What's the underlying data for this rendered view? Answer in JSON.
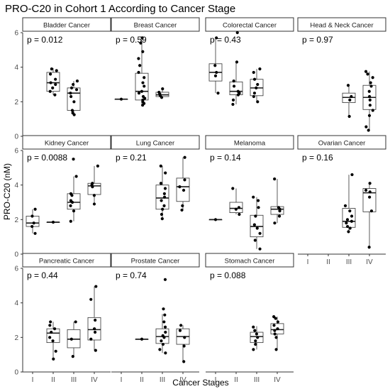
{
  "chart_data": {
    "type": "box",
    "title": "PRO-C20 in Cohort 1 According to Cancer Stage",
    "xlabel": "Cancer Stages",
    "ylabel": "PRO-C20 (nM)",
    "categories": [
      "I",
      "II",
      "III",
      "IV"
    ],
    "ylim": [
      0,
      6
    ],
    "yticks": [
      "0",
      "2",
      "4",
      "6"
    ],
    "layout": "facet-grid 4 columns x 3 rows, free x-axis only on bottom cells",
    "panels": [
      {
        "name": "Bladder Cancer",
        "p_label": "p = 0.012",
        "groups": [
          {
            "stage": "II",
            "q1": 2.6,
            "median": 3.1,
            "q3": 3.7,
            "low": 2.4,
            "high": 3.95,
            "points": [
              2.4,
              2.6,
              2.8,
              3.0,
              3.1,
              3.3,
              3.6,
              3.8,
              3.9
            ]
          },
          {
            "stage": "III",
            "q1": 1.5,
            "median": 2.5,
            "q3": 2.8,
            "low": 1.25,
            "high": 3.2,
            "points": [
              1.25,
              1.35,
              1.5,
              2.0,
              2.3,
              2.5,
              2.7,
              2.8,
              3.0,
              3.2
            ]
          }
        ]
      },
      {
        "name": "Breast Cancer",
        "p_label": "p = 0.59",
        "groups": [
          {
            "stage": "I",
            "q1": 2.15,
            "median": 2.15,
            "q3": 2.15,
            "low": 2.15,
            "high": 2.15,
            "points": [
              2.15
            ]
          },
          {
            "stage": "II",
            "q1": 2.1,
            "median": 2.6,
            "q3": 3.65,
            "low": 1.8,
            "high": 5.7,
            "points": [
              1.8,
              1.9,
              2.0,
              2.1,
              2.2,
              2.3,
              2.5,
              2.6,
              2.9,
              3.1,
              3.4,
              3.7,
              4.1,
              4.5,
              4.9,
              5.4,
              5.7
            ]
          },
          {
            "stage": "III",
            "q1": 2.3,
            "median": 2.4,
            "q3": 2.55,
            "low": 2.25,
            "high": 2.75,
            "points": [
              2.25,
              2.35,
              2.45,
              2.55,
              2.75
            ]
          }
        ]
      },
      {
        "name": "Colorectal Cancer",
        "p_label": "p = 0.43",
        "groups": [
          {
            "stage": "I",
            "q1": 3.2,
            "median": 3.7,
            "q3": 4.2,
            "low": 2.5,
            "high": 5.7,
            "points": [
              2.5,
              3.5,
              3.7,
              4.1,
              5.7
            ]
          },
          {
            "stage": "II",
            "q1": 2.4,
            "median": 2.6,
            "q3": 3.15,
            "low": 1.85,
            "high": 4.3,
            "points": [
              1.85,
              2.1,
              2.4,
              2.5,
              2.6,
              2.9,
              3.2,
              4.3,
              6.0
            ]
          },
          {
            "stage": "III",
            "q1": 2.35,
            "median": 2.8,
            "q3": 3.3,
            "low": 2.0,
            "high": 3.9,
            "points": [
              2.0,
              2.3,
              2.5,
              2.8,
              3.0,
              3.3,
              3.7,
              3.9
            ]
          }
        ]
      },
      {
        "name": "Head & Neck Cancer",
        "p_label": "p = 0.97",
        "groups": [
          {
            "stage": "III",
            "q1": 1.95,
            "median": 2.25,
            "q3": 2.5,
            "low": 1.15,
            "high": 2.95,
            "points": [
              1.15,
              2.1,
              2.3,
              2.95
            ]
          },
          {
            "stage": "IV",
            "q1": 1.55,
            "median": 2.25,
            "q3": 2.95,
            "low": 0.35,
            "high": 3.75,
            "points": [
              0.35,
              0.55,
              1.2,
              1.5,
              1.8,
              2.1,
              2.3,
              2.6,
              2.9,
              3.1,
              3.4,
              3.6,
              3.75
            ]
          }
        ]
      },
      {
        "name": "Kidney Cancer",
        "p_label": "p = 0.0088",
        "groups": [
          {
            "stage": "I",
            "q1": 1.6,
            "median": 1.8,
            "q3": 2.2,
            "low": 1.2,
            "high": 2.6,
            "points": [
              1.2,
              1.6,
              1.8,
              2.2,
              2.6
            ]
          },
          {
            "stage": "II",
            "q1": 1.85,
            "median": 1.85,
            "q3": 1.85,
            "low": 1.85,
            "high": 1.85,
            "points": [
              1.85
            ]
          },
          {
            "stage": "III",
            "q1": 2.6,
            "median": 3.0,
            "q3": 3.5,
            "low": 1.9,
            "high": 4.5,
            "points": [
              1.9,
              2.5,
              2.8,
              3.0,
              3.1,
              3.4,
              3.5,
              4.5,
              5.5
            ]
          },
          {
            "stage": "IV",
            "q1": 3.45,
            "median": 3.95,
            "q3": 4.1,
            "low": 2.9,
            "high": 5.1,
            "points": [
              2.9,
              3.4,
              3.9,
              4.0,
              4.1,
              5.1
            ]
          }
        ]
      },
      {
        "name": "Lung Cancer",
        "p_label": "p = 0.21",
        "groups": [
          {
            "stage": "III",
            "q1": 2.6,
            "median": 3.25,
            "q3": 4.0,
            "low": 2.05,
            "high": 5.1,
            "points": [
              2.05,
              2.3,
              2.6,
              2.8,
              3.1,
              3.3,
              3.5,
              3.8,
              4.1,
              4.7,
              5.1
            ]
          },
          {
            "stage": "IV",
            "q1": 3.05,
            "median": 3.9,
            "q3": 4.4,
            "low": 2.55,
            "high": 5.6,
            "points": [
              2.55,
              2.8,
              3.7,
              3.9,
              4.3,
              5.6
            ]
          }
        ]
      },
      {
        "name": "Melanoma",
        "p_label": "p = 0.14",
        "groups": [
          {
            "stage": "I",
            "q1": 2.0,
            "median": 2.0,
            "q3": 2.0,
            "low": 2.0,
            "high": 2.0,
            "points": [
              2.0
            ]
          },
          {
            "stage": "II",
            "q1": 2.4,
            "median": 2.65,
            "q3": 3.0,
            "low": 2.3,
            "high": 3.8,
            "points": [
              2.3,
              2.6,
              2.7,
              3.8
            ]
          },
          {
            "stage": "III",
            "q1": 1.0,
            "median": 1.6,
            "q3": 2.25,
            "low": 0.3,
            "high": 3.3,
            "points": [
              0.3,
              0.8,
              1.2,
              1.5,
              1.7,
              2.2,
              2.7,
              3.1,
              3.3
            ]
          },
          {
            "stage": "IV",
            "q1": 2.3,
            "median": 2.6,
            "q3": 2.75,
            "low": 1.8,
            "high": 4.35,
            "points": [
              1.8,
              2.2,
              2.5,
              2.6,
              2.7,
              4.35
            ]
          }
        ]
      },
      {
        "name": "Ovarian Cancer",
        "p_label": "p = 0.16",
        "groups": [
          {
            "stage": "III",
            "q1": 1.55,
            "median": 1.9,
            "q3": 2.65,
            "low": 1.3,
            "high": 4.6,
            "points": [
              1.3,
              1.5,
              1.6,
              1.8,
              1.9,
              2.0,
              2.2,
              2.5,
              2.8,
              4.6
            ]
          },
          {
            "stage": "IV",
            "q1": 2.45,
            "median": 3.55,
            "q3": 3.8,
            "low": 0.4,
            "high": 4.1,
            "points": [
              0.4,
              2.5,
              3.3,
              3.6,
              3.7,
              4.1
            ]
          }
        ]
      },
      {
        "name": "Pancreatic Cancer",
        "p_label": "p = 0.44",
        "groups": [
          {
            "stage": "II",
            "q1": 1.7,
            "median": 2.25,
            "q3": 2.5,
            "low": 0.75,
            "high": 2.9,
            "points": [
              0.75,
              1.2,
              1.8,
              2.0,
              2.3,
              2.5,
              2.7,
              2.9
            ]
          },
          {
            "stage": "III",
            "q1": 1.4,
            "median": 1.9,
            "q3": 2.45,
            "low": 0.9,
            "high": 2.9,
            "points": [
              0.9,
              1.9,
              2.9
            ]
          },
          {
            "stage": "IV",
            "q1": 1.85,
            "median": 2.45,
            "q3": 3.15,
            "low": 1.25,
            "high": 4.95,
            "points": [
              1.25,
              1.9,
              2.3,
              2.5,
              3.0,
              4.2,
              4.95
            ]
          }
        ]
      },
      {
        "name": "Prostate Cancer",
        "p_label": "p = 0.74",
        "groups": [
          {
            "stage": "II",
            "q1": 1.9,
            "median": 1.9,
            "q3": 1.9,
            "low": 1.9,
            "high": 1.9,
            "points": [
              1.9
            ]
          },
          {
            "stage": "III",
            "q1": 1.65,
            "median": 2.05,
            "q3": 2.5,
            "low": 1.1,
            "high": 3.35,
            "points": [
              1.1,
              1.3,
              1.6,
              1.8,
              2.0,
              2.1,
              2.3,
              2.6,
              2.9,
              3.3,
              3.65,
              5.35
            ]
          },
          {
            "stage": "IV",
            "q1": 1.6,
            "median": 2.05,
            "q3": 2.5,
            "low": 0.6,
            "high": 2.7,
            "points": [
              0.6,
              1.5,
              2.0,
              2.4,
              2.7
            ]
          }
        ]
      },
      {
        "name": "Stomach Cancer",
        "p_label": "p = 0.088",
        "groups": [
          {
            "stage": "III",
            "q1": 1.7,
            "median": 2.05,
            "q3": 2.3,
            "low": 1.3,
            "high": 2.65,
            "points": [
              1.3,
              1.6,
              1.8,
              2.0,
              2.2,
              2.4,
              2.6
            ]
          },
          {
            "stage": "IV",
            "q1": 2.2,
            "median": 2.45,
            "q3": 2.8,
            "low": 1.3,
            "high": 3.2,
            "points": [
              1.3,
              2.0,
              2.2,
              2.4,
              2.5,
              2.7,
              2.9,
              3.1,
              3.2
            ]
          }
        ]
      }
    ]
  }
}
